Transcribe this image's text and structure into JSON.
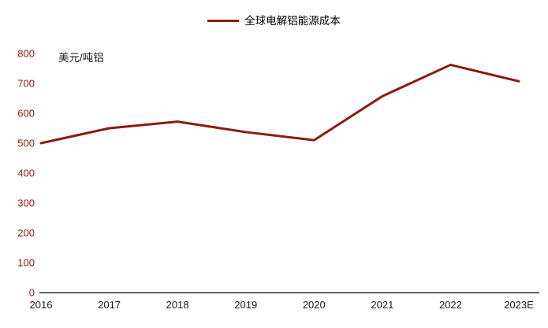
{
  "chart_data": {
    "type": "line",
    "title": "",
    "legend_position": "top-center",
    "unit_label": "美元/吨铝",
    "categories": [
      "2016",
      "2017",
      "2018",
      "2019",
      "2020",
      "2021",
      "2022",
      "2023E"
    ],
    "series": [
      {
        "name": "全球电解铝能源成本",
        "values": [
          500,
          550,
          572,
          537,
          510,
          657,
          762,
          707
        ]
      }
    ],
    "ylim": [
      0,
      800
    ],
    "ytick_step": 100,
    "yticks": [
      0,
      100,
      200,
      300,
      400,
      500,
      600,
      700,
      800
    ],
    "grid": false,
    "colors": {
      "line": "#8B1A10",
      "y_tick_label": "#8B1A10",
      "x_tick_label": "#1a1a1a",
      "axis_line": "#000000"
    }
  }
}
